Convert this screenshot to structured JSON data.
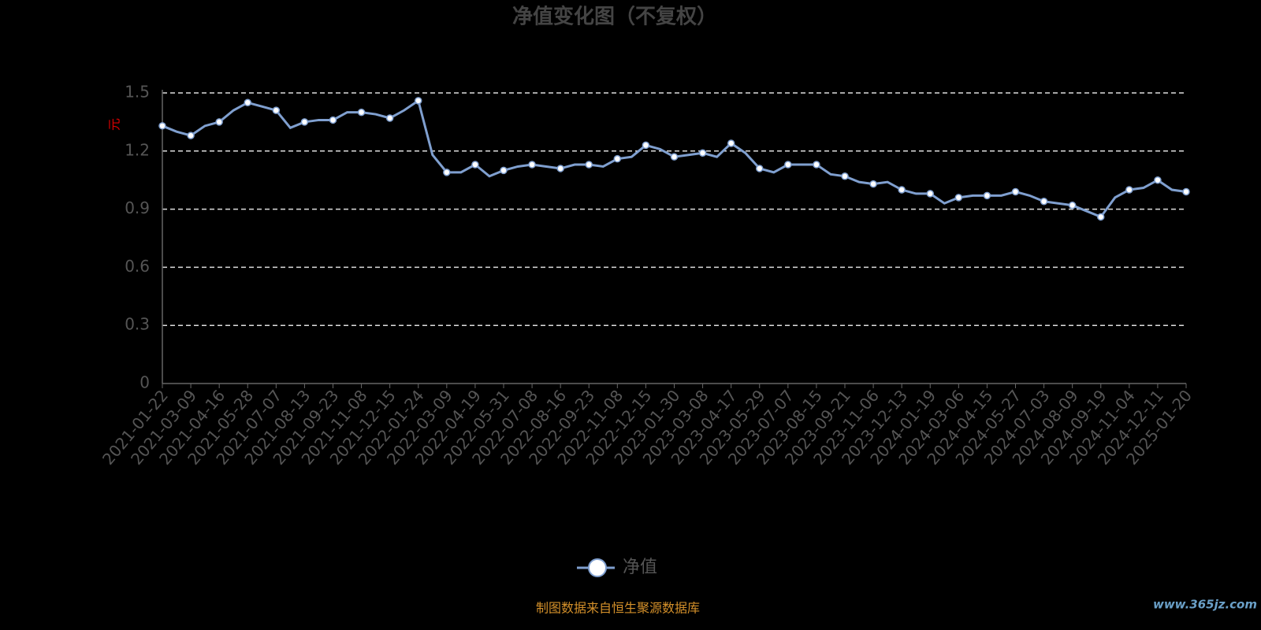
{
  "chart_data": {
    "type": "line",
    "title": "净值变化图（不复权）",
    "y_label": "元",
    "footer": "制图数据来自恒生聚源数据库",
    "watermark": "www.365jz.com",
    "categories": [
      "2021-01-22",
      null,
      "2021-03-09",
      null,
      "2021-04-16",
      null,
      "2021-05-28",
      null,
      "2021-07-07",
      null,
      "2021-08-13",
      null,
      "2021-09-23",
      null,
      "2021-11-08",
      null,
      "2021-12-15",
      null,
      "2022-01-24",
      null,
      "2022-03-09",
      null,
      "2022-04-19",
      null,
      "2022-05-31",
      null,
      "2022-07-08",
      null,
      "2022-08-16",
      null,
      "2022-09-23",
      null,
      "2022-11-08",
      null,
      "2022-12-15",
      null,
      "2023-01-30",
      null,
      "2023-03-08",
      null,
      "2023-04-17",
      null,
      "2023-05-29",
      null,
      "2023-07-07",
      null,
      "2023-08-15",
      null,
      "2023-09-21",
      null,
      "2023-11-06",
      null,
      "2023-12-13",
      null,
      "2024-01-19",
      null,
      "2024-03-06",
      null,
      "2024-04-15",
      null,
      "2024-05-27",
      null,
      "2024-07-03",
      null,
      "2024-08-09",
      null,
      "2024-09-19",
      null,
      "2024-11-04",
      null,
      "2024-12-11",
      null,
      "2025-01-20"
    ],
    "series": [
      {
        "name": "净值",
        "color": "#7f9fcf",
        "values": [
          1.33,
          1.3,
          1.28,
          1.33,
          1.35,
          1.41,
          1.45,
          1.43,
          1.41,
          1.32,
          1.35,
          1.36,
          1.36,
          1.4,
          1.4,
          1.39,
          1.37,
          1.41,
          1.46,
          1.18,
          1.09,
          1.09,
          1.13,
          1.07,
          1.1,
          1.12,
          1.13,
          1.12,
          1.11,
          1.13,
          1.13,
          1.12,
          1.16,
          1.17,
          1.23,
          1.21,
          1.17,
          1.18,
          1.19,
          1.17,
          1.24,
          1.19,
          1.11,
          1.09,
          1.13,
          1.13,
          1.13,
          1.08,
          1.07,
          1.04,
          1.03,
          1.04,
          1.0,
          0.98,
          0.98,
          0.93,
          0.96,
          0.97,
          0.97,
          0.97,
          0.99,
          0.97,
          0.94,
          0.93,
          0.92,
          0.89,
          0.86,
          0.96,
          1.0,
          1.01,
          1.05,
          1.0,
          0.99
        ]
      }
    ],
    "ylim": [
      0,
      1.5
    ],
    "yticks": [
      0,
      0.3,
      0.6,
      0.9,
      1.2,
      1.5
    ],
    "grid": true
  }
}
